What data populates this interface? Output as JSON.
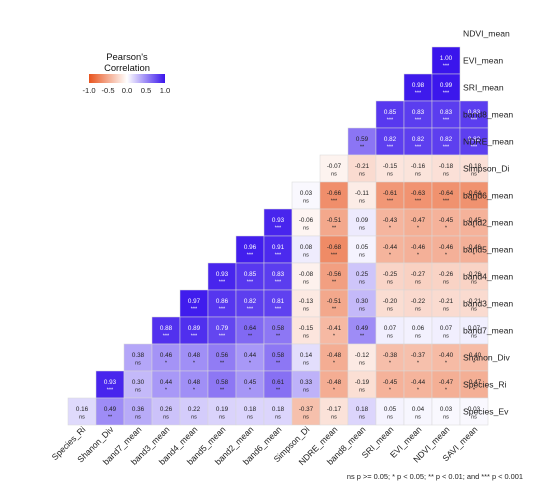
{
  "chart_data": {
    "type": "heatmap",
    "title": "",
    "legend": {
      "title_line1": "Pearson's",
      "title_line2": "Correlation",
      "ticks": [
        "-1.0",
        "-0.5",
        "0.0",
        "0.5",
        "1.0"
      ],
      "tick_values": [
        -1.0,
        -0.5,
        0.0,
        0.5,
        1.0
      ],
      "colors": {
        "negative": "#e8541e",
        "zero": "#ffffff",
        "positive": "#3a15ec"
      },
      "placement": "top-left"
    },
    "footnote": "ns p >= 0.05; * p < 0.05; ** p < 0.01; and *** p < 0.001",
    "x_labels": [
      "Species_Ri",
      "Shanon_Div",
      "band7_mean",
      "band3_mean",
      "band4_mean",
      "band5_mean",
      "band2_mean",
      "band6_mean",
      "Simpson_Di",
      "NDRE_mean",
      "band8_mean",
      "SRI_mean",
      "EVI_mean",
      "NDVI_mean",
      "SAVI_mean"
    ],
    "y_labels": [
      "NDVI_mean",
      "EVI_mean",
      "SRI_mean",
      "band8_mean",
      "NDRE_mean",
      "Simpson_Di",
      "band6_mean",
      "band2_mean",
      "band5_mean",
      "band4_mean",
      "band3_mean",
      "band7_mean",
      "Shanon_Div",
      "Species_Ri",
      "Species_Ev"
    ],
    "rows": [
      {
        "values": [],
        "sig": []
      },
      {
        "values": [
          1.0
        ],
        "sig": [
          "***"
        ]
      },
      {
        "values": [
          0.98,
          0.99
        ],
        "sig": [
          "***",
          "***"
        ]
      },
      {
        "values": [
          0.85,
          0.83,
          0.83,
          0.83
        ],
        "sig": [
          "***",
          "***",
          "***",
          "***"
        ]
      },
      {
        "values": [
          0.59,
          0.82,
          0.82,
          0.82,
          0.82
        ],
        "sig": [
          "**",
          "***",
          "***",
          "***",
          "***"
        ]
      },
      {
        "values": [
          -0.07,
          -0.21,
          -0.15,
          -0.16,
          -0.18,
          -0.18
        ],
        "sig": [
          "ns",
          "ns",
          "ns",
          "ns",
          "ns",
          "ns"
        ]
      },
      {
        "values": [
          0.03,
          -0.66,
          -0.11,
          -0.61,
          -0.63,
          -0.64,
          -0.64
        ],
        "sig": [
          "ns",
          "***",
          "ns",
          "***",
          "***",
          "***",
          "***"
        ]
      },
      {
        "values": [
          0.93,
          -0.06,
          -0.51,
          0.09,
          -0.43,
          -0.47,
          -0.45,
          -0.45
        ],
        "sig": [
          "***",
          "ns",
          "**",
          "ns",
          "*",
          "*",
          "*",
          "*"
        ]
      },
      {
        "values": [
          0.96,
          0.91,
          0.08,
          -0.68,
          0.05,
          -0.44,
          -0.46,
          -0.46,
          -0.46
        ],
        "sig": [
          "***",
          "***",
          "ns",
          "***",
          "ns",
          "*",
          "*",
          "*",
          "*"
        ]
      },
      {
        "values": [
          0.93,
          0.85,
          0.83,
          -0.08,
          -0.56,
          0.25,
          -0.25,
          -0.27,
          -0.26,
          -0.26
        ],
        "sig": [
          "***",
          "***",
          "***",
          "ns",
          "**",
          "ns",
          "ns",
          "ns",
          "ns",
          "ns"
        ]
      },
      {
        "values": [
          0.97,
          0.86,
          0.82,
          0.81,
          -0.13,
          -0.51,
          0.3,
          -0.2,
          -0.22,
          -0.21,
          -0.21
        ],
        "sig": [
          "***",
          "***",
          "***",
          "***",
          "ns",
          "**",
          "ns",
          "ns",
          "ns",
          "ns",
          "ns"
        ]
      },
      {
        "values": [
          0.88,
          0.89,
          0.79,
          0.64,
          0.58,
          -0.15,
          -0.41,
          0.49,
          0.07,
          0.06,
          0.07,
          0.07
        ],
        "sig": [
          "***",
          "***",
          "***",
          "**",
          "**",
          "ns",
          "*",
          "**",
          "ns",
          "ns",
          "ns",
          "ns"
        ]
      },
      {
        "values": [
          0.38,
          0.46,
          0.48,
          0.56,
          0.44,
          0.58,
          0.14,
          -0.48,
          -0.12,
          -0.38,
          -0.37,
          -0.4,
          -0.4
        ],
        "sig": [
          "ns",
          "*",
          "*",
          "**",
          "*",
          "**",
          "ns",
          "*",
          "ns",
          "*",
          "*",
          "*",
          "*"
        ]
      },
      {
        "values": [
          0.93,
          0.3,
          0.44,
          0.48,
          0.58,
          0.45,
          0.61,
          0.33,
          -0.48,
          -0.19,
          -0.45,
          -0.44,
          -0.47,
          -0.47
        ],
        "sig": [
          "***",
          "ns",
          "*",
          "*",
          "**",
          "*",
          "**",
          "ns",
          "*",
          "ns",
          "*",
          "*",
          "*",
          "*"
        ]
      },
      {
        "values": [
          0.16,
          0.49,
          0.36,
          0.26,
          0.22,
          0.19,
          0.18,
          0.18,
          -0.37,
          -0.17,
          0.18,
          0.05,
          0.04,
          0.03,
          0.03
        ],
        "sig": [
          "ns",
          "**",
          "ns",
          "ns",
          "ns",
          "ns",
          "ns",
          "ns",
          "ns",
          "ns",
          "ns",
          "ns",
          "ns",
          "ns",
          "ns"
        ]
      }
    ]
  }
}
